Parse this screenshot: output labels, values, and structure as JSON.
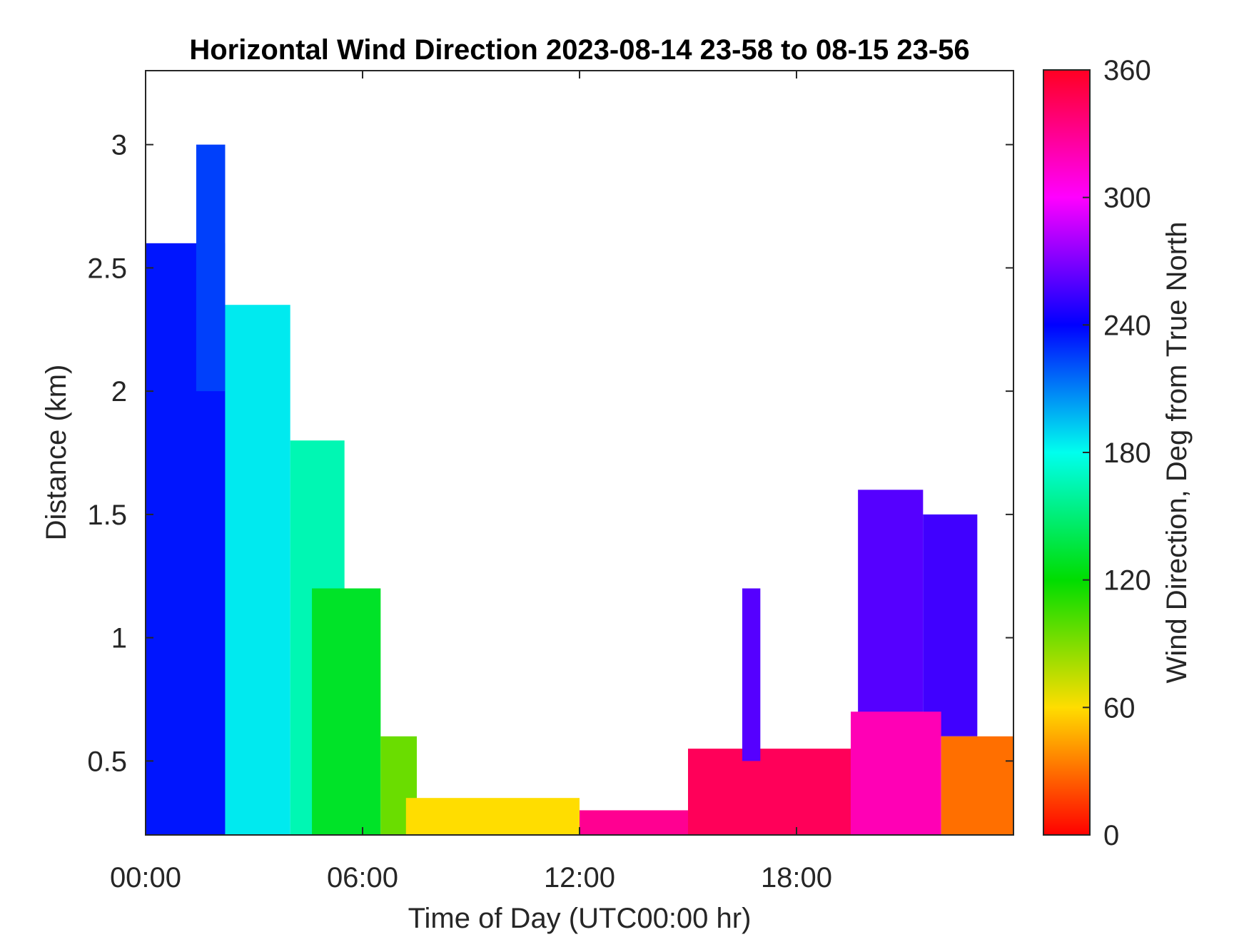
{
  "chart_data": {
    "type": "heatmap",
    "title": "Horizontal Wind Direction 2023-08-14 23-58 to 08-15 23-56",
    "xlabel": "Time of Day (UTC00:00 hr)",
    "ylabel": "Distance (km)",
    "colorbar_label": "Wind Direction, Deg from True North",
    "xlim": [
      0,
      24
    ],
    "ylim": [
      0.2,
      3.3
    ],
    "clim": [
      0,
      360
    ],
    "x_ticks": [
      {
        "value": 0,
        "label": "00:00"
      },
      {
        "value": 6,
        "label": "06:00"
      },
      {
        "value": 12,
        "label": "12:00"
      },
      {
        "value": 18,
        "label": "18:00"
      }
    ],
    "y_ticks": [
      {
        "value": 0.5,
        "label": "0.5"
      },
      {
        "value": 1,
        "label": "1"
      },
      {
        "value": 1.5,
        "label": "1.5"
      },
      {
        "value": 2,
        "label": "2"
      },
      {
        "value": 2.5,
        "label": "2.5"
      },
      {
        "value": 3,
        "label": "3"
      }
    ],
    "colorbar_ticks": [
      {
        "value": 0,
        "label": "0"
      },
      {
        "value": 60,
        "label": "60"
      },
      {
        "value": 120,
        "label": "120"
      },
      {
        "value": 180,
        "label": "180"
      },
      {
        "value": 240,
        "label": "240"
      },
      {
        "value": 300,
        "label": "300"
      },
      {
        "value": 360,
        "label": "360"
      }
    ],
    "colormap": [
      "#ff0000",
      "#ffdd00",
      "#00dd00",
      "#00ffee",
      "#0000ff",
      "#ff00ff",
      "#ff0022"
    ],
    "grid": false,
    "regions": [
      {
        "t0": 0.0,
        "t1": 2.2,
        "h0": 0.2,
        "h1": 2.6,
        "dir": 235
      },
      {
        "t0": 1.4,
        "t1": 2.2,
        "h0": 2.0,
        "h1": 3.0,
        "dir": 225
      },
      {
        "t0": 2.2,
        "t1": 4.0,
        "h0": 0.2,
        "h1": 2.35,
        "dir": 185
      },
      {
        "t0": 4.0,
        "t1": 5.5,
        "h0": 0.2,
        "h1": 1.8,
        "dir": 165
      },
      {
        "t0": 4.6,
        "t1": 6.5,
        "h0": 0.2,
        "h1": 1.2,
        "dir": 130
      },
      {
        "t0": 6.5,
        "t1": 7.5,
        "h0": 0.2,
        "h1": 0.6,
        "dir": 95
      },
      {
        "t0": 7.2,
        "t1": 12.0,
        "h0": 0.2,
        "h1": 0.35,
        "dir": 60
      },
      {
        "t0": 12.0,
        "t1": 15.0,
        "h0": 0.2,
        "h1": 0.3,
        "dir": 330
      },
      {
        "t0": 15.0,
        "t1": 19.5,
        "h0": 0.2,
        "h1": 0.55,
        "dir": 345
      },
      {
        "t0": 16.5,
        "t1": 17.0,
        "h0": 0.5,
        "h1": 1.2,
        "dir": 260
      },
      {
        "t0": 19.7,
        "t1": 21.5,
        "h0": 0.6,
        "h1": 1.6,
        "dir": 260
      },
      {
        "t0": 21.5,
        "t1": 23.0,
        "h0": 0.6,
        "h1": 1.5,
        "dir": 255
      },
      {
        "t0": 19.5,
        "t1": 22.0,
        "h0": 0.2,
        "h1": 0.7,
        "dir": 320
      },
      {
        "t0": 22.0,
        "t1": 24.0,
        "h0": 0.2,
        "h1": 0.6,
        "dir": 30
      }
    ]
  }
}
